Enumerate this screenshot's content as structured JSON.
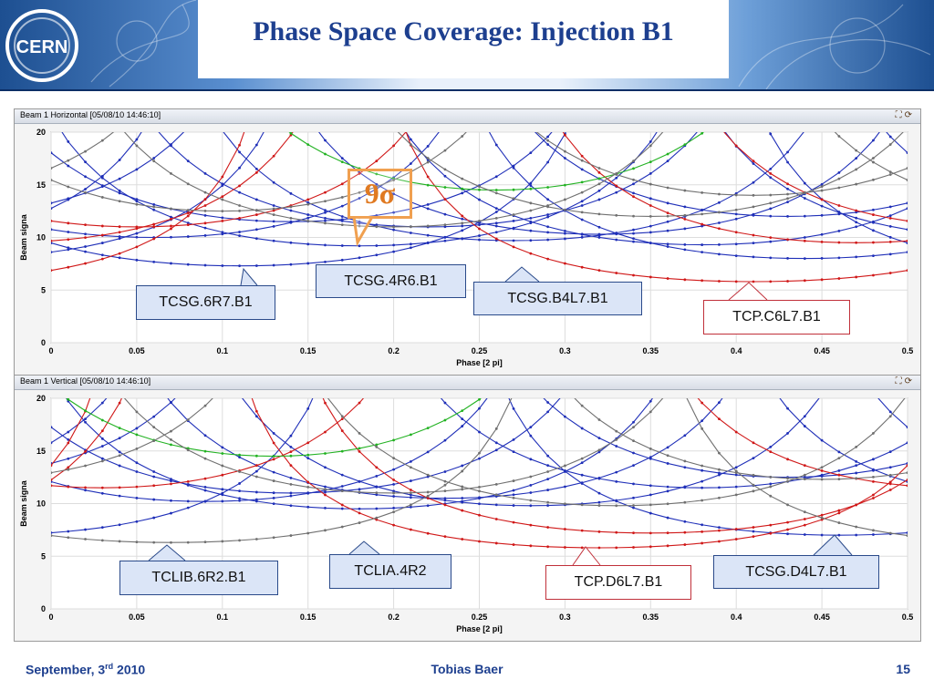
{
  "slide": {
    "title": "Phase Space Coverage: Injection B1",
    "logo_text": "CERN",
    "footer_date_prefix": "September, 3",
    "footer_date_sup": "rd",
    "footer_date_suffix": " 2010",
    "footer_author": "Tobias Baer",
    "page_number": "15"
  },
  "annotation": {
    "sigma_label": "9σ"
  },
  "panels": [
    {
      "title": "Beam 1 Horizontal  [05/08/10 14:46:10]",
      "callouts": [
        {
          "label": "TCSG.6R7.B1",
          "color": "blue"
        },
        {
          "label": "TCSG.4R6.B1",
          "color": "blue"
        },
        {
          "label": "TCSG.B4L7.B1",
          "color": "blue"
        },
        {
          "label": "TCP.C6L7.B1",
          "color": "red"
        }
      ]
    },
    {
      "title": "Beam 1 Vertical  [05/08/10 14:46:10]",
      "callouts": [
        {
          "label": "TCLIB.6R2.B1",
          "color": "blue"
        },
        {
          "label": "TCLIA.4R2",
          "color": "blue"
        },
        {
          "label": "TCP.D6L7.B1",
          "color": "red"
        },
        {
          "label": "TCSG.D4L7.B1",
          "color": "blue"
        }
      ]
    }
  ],
  "chart_data": [
    {
      "type": "line",
      "title": "Beam 1 Horizontal  [05/08/10 14:46:10]",
      "xlabel": "Phase [2 pi]",
      "ylabel": "Beam signa",
      "xlim": [
        0,
        0.5
      ],
      "ylim": [
        0,
        20
      ],
      "x_ticks": [
        "0",
        "0.05",
        "0.1",
        "0.15",
        "0.2",
        "0.25",
        "0.3",
        "0.35",
        "0.4",
        "0.45",
        "0.5"
      ],
      "y_ticks": [
        "0",
        "5",
        "10",
        "15",
        "20"
      ],
      "grid": true,
      "colors": {
        "blue": "#1f2fb8",
        "red": "#d01818",
        "green": "#22b222",
        "gray": "#707070"
      },
      "series": [
        {
          "color": "blue",
          "min": 7.3,
          "center": 0.11
        },
        {
          "color": "blue",
          "min": 9.2,
          "center": 0.18
        },
        {
          "color": "blue",
          "min": 9.7,
          "center": 0.27
        },
        {
          "color": "blue",
          "min": 10.3,
          "center": 0.32
        },
        {
          "color": "blue",
          "min": 11.0,
          "center": 0.22
        },
        {
          "color": "blue",
          "min": 9.3,
          "center": 0.38
        },
        {
          "color": "blue",
          "min": 10.0,
          "center": 0.06
        },
        {
          "color": "blue",
          "min": 11.5,
          "center": 0.14
        },
        {
          "color": "blue",
          "min": 12.0,
          "center": 0.43
        },
        {
          "color": "blue",
          "min": 8.0,
          "center": 0.44
        },
        {
          "color": "red",
          "min": 5.8,
          "center": 0.41
        },
        {
          "color": "red",
          "min": 9.5,
          "center": 0.47
        },
        {
          "color": "red",
          "min": 11.0,
          "center": 0.05
        },
        {
          "color": "green",
          "min": 14.5,
          "center": 0.26
        },
        {
          "color": "gray",
          "min": 11.0,
          "center": 0.2
        },
        {
          "color": "gray",
          "min": 12.0,
          "center": 0.35
        },
        {
          "color": "gray",
          "min": 12.5,
          "center": 0.1
        },
        {
          "color": "gray",
          "min": 14.0,
          "center": 0.41
        }
      ]
    },
    {
      "type": "line",
      "title": "Beam 1 Vertical  [05/08/10 14:46:10]",
      "xlabel": "Phase [2 pi]",
      "ylabel": "Beam signa",
      "xlim": [
        0,
        0.5
      ],
      "ylim": [
        0,
        20
      ],
      "x_ticks": [
        "0",
        "0.05",
        "0.1",
        "0.15",
        "0.2",
        "0.25",
        "0.3",
        "0.35",
        "0.4",
        "0.45",
        "0.5"
      ],
      "y_ticks": [
        "0",
        "5",
        "10",
        "15",
        "20"
      ],
      "grid": true,
      "colors": {
        "blue": "#1f2fb8",
        "red": "#d01818",
        "green": "#22b222",
        "gray": "#707070"
      },
      "series": [
        {
          "color": "blue",
          "min": 9.5,
          "center": 0.18
        },
        {
          "color": "blue",
          "min": 10.2,
          "center": 0.09
        },
        {
          "color": "blue",
          "min": 7.0,
          "center": 0.46
        },
        {
          "color": "blue",
          "min": 11.5,
          "center": 0.38
        },
        {
          "color": "blue",
          "min": 9.8,
          "center": 0.28
        },
        {
          "color": "blue",
          "min": 11.0,
          "center": 0.14
        },
        {
          "color": "blue",
          "min": 12.5,
          "center": 0.43
        },
        {
          "color": "blue",
          "min": 10.5,
          "center": 0.23
        },
        {
          "color": "red",
          "min": 5.8,
          "center": 0.32
        },
        {
          "color": "red",
          "min": 7.2,
          "center": 0.35
        },
        {
          "color": "red",
          "min": 11.5,
          "center": 0.03
        },
        {
          "color": "green",
          "min": 14.5,
          "center": 0.13
        },
        {
          "color": "gray",
          "min": 6.3,
          "center": 0.07
        },
        {
          "color": "gray",
          "min": 9.8,
          "center": 0.33
        },
        {
          "color": "gray",
          "min": 11.0,
          "center": 0.2
        },
        {
          "color": "gray",
          "min": 12.3,
          "center": 0.45
        }
      ]
    }
  ]
}
